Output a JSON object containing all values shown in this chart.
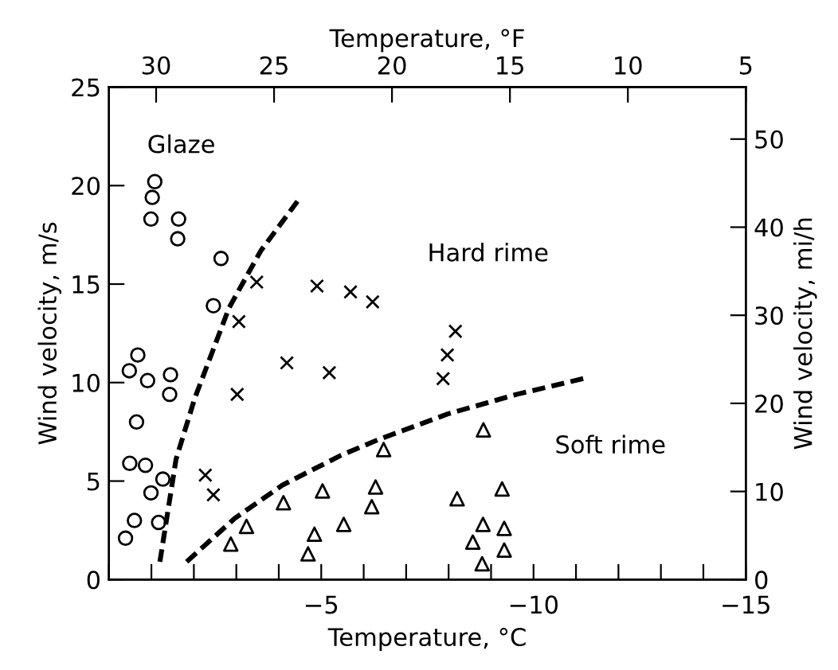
{
  "chart_data": {
    "type": "scatter",
    "xlabel": "Temperature, °C",
    "ylabel": "Wind velocity, m/s",
    "y2label": "Wind velocity, mi/h",
    "x2label": "Temperature, °F",
    "xlim": [
      0,
      -15
    ],
    "ylim": [
      0,
      25
    ],
    "x2lim": [
      32,
      5
    ],
    "y2lim": [
      0,
      55.9
    ],
    "xticks": [
      {
        "value": 0,
        "label": null
      },
      {
        "value": -1,
        "label": null
      },
      {
        "value": -2,
        "label": null
      },
      {
        "value": -3,
        "label": null
      },
      {
        "value": -4,
        "label": null
      },
      -5,
      {
        "value": -6,
        "label": null
      },
      {
        "value": -7,
        "label": null
      },
      {
        "value": -8,
        "label": null
      },
      {
        "value": -9,
        "label": null
      },
      -10,
      {
        "value": -11,
        "label": null
      },
      {
        "value": -12,
        "label": null
      },
      {
        "value": -13,
        "label": null
      },
      {
        "value": -14,
        "label": null
      },
      -15
    ],
    "yticks": [
      0,
      5,
      10,
      15,
      20,
      25
    ],
    "x2ticks": [
      30,
      25,
      20,
      15,
      10,
      5
    ],
    "y2ticks": [
      0,
      10,
      20,
      30,
      40,
      50
    ],
    "grid": false,
    "legend": false,
    "series": [
      {
        "marker": "circle",
        "color": "#000000",
        "x": [
          -1.08,
          -1.02,
          -0.99,
          -1.64,
          -1.62,
          -2.64,
          -2.46,
          -0.68,
          -0.48,
          -0.91,
          -1.45,
          -1.43,
          -0.65,
          -0.49,
          -0.86,
          -1.27,
          -0.99,
          -0.6,
          -1.17,
          -0.39
        ],
        "values": [
          20.2,
          19.4,
          18.3,
          18.3,
          17.3,
          16.3,
          13.9,
          11.4,
          10.6,
          10.1,
          10.4,
          9.4,
          8.0,
          5.9,
          5.8,
          5.1,
          4.4,
          3.0,
          2.9,
          2.1
        ]
      },
      {
        "marker": "cross",
        "color": "#000000",
        "x": [
          -3.48,
          -3.06,
          -3.02,
          -4.19,
          -4.9,
          -5.69,
          -6.21,
          -5.19,
          -2.27,
          -2.46,
          -8.16,
          -7.97,
          -7.87
        ],
        "values": [
          15.1,
          13.1,
          9.4,
          11.0,
          14.9,
          14.6,
          14.1,
          10.5,
          5.3,
          4.3,
          12.6,
          11.4,
          10.2
        ]
      },
      {
        "marker": "triangle",
        "color": "#000000",
        "x": [
          -6.47,
          -6.28,
          -6.19,
          -5.03,
          -4.11,
          -5.53,
          -4.84,
          -4.69,
          -3.24,
          -2.87,
          -8.82,
          -8.2,
          -9.26,
          -8.81,
          -9.31,
          -8.57,
          -9.31,
          -8.79
        ],
        "values": [
          6.6,
          4.7,
          3.7,
          4.5,
          3.9,
          2.8,
          2.3,
          1.3,
          2.7,
          1.8,
          7.6,
          4.1,
          4.6,
          2.8,
          2.6,
          1.9,
          1.5,
          0.8
        ]
      },
      {
        "type": "line",
        "line_style": "dashed",
        "color": "#000000",
        "x": [
          -1.2,
          -1.58,
          -2.02,
          -2.83,
          -3.58,
          -4.44
        ],
        "values": [
          0.9,
          6.1,
          9.2,
          13.8,
          16.7,
          19.2
        ]
      },
      {
        "type": "line",
        "line_style": "dashed",
        "color": "#000000",
        "x": [
          -1.83,
          -2.96,
          -4.09,
          -5.46,
          -6.34,
          -7.97,
          -9.6,
          -11.17
        ],
        "values": [
          0.9,
          3.1,
          4.8,
          6.3,
          7.1,
          8.4,
          9.4,
          10.2
        ]
      }
    ],
    "annotations": [
      "Glaze",
      "Hard rime",
      "Soft rime"
    ]
  }
}
